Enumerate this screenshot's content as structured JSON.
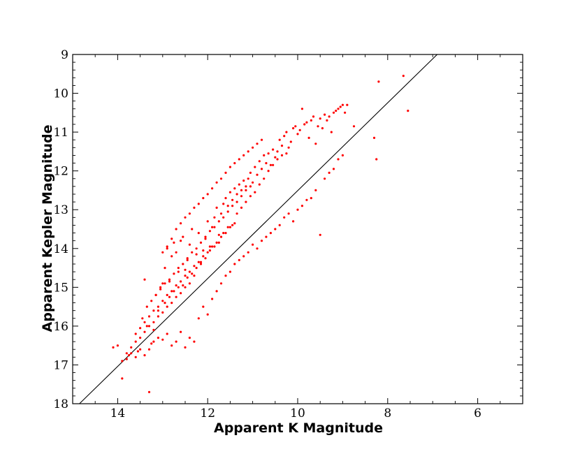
{
  "chart_data": {
    "type": "scatter",
    "title": "",
    "xlabel": "Apparent K Magnitude",
    "ylabel": "Apparent Kepler Magnitude",
    "xlim": [
      15,
      5
    ],
    "ylim": [
      18,
      9
    ],
    "x_inverted": true,
    "y_inverted": true,
    "x_ticks": [
      14,
      12,
      10,
      8,
      6
    ],
    "y_ticks": [
      9,
      10,
      11,
      12,
      13,
      14,
      15,
      16,
      17,
      18
    ],
    "grid": false,
    "legend": "none",
    "marker_color": "#ff0000",
    "line_color": "#000000",
    "reference_line": {
      "x": [
        14.85,
        6.9
      ],
      "y": [
        18.0,
        9.0
      ]
    },
    "series": [
      {
        "marker": "dot",
        "x": [
          14.1,
          14.0,
          13.9,
          13.8,
          13.75,
          13.7,
          13.6,
          13.55,
          13.5,
          13.45,
          13.4,
          13.35,
          13.3,
          13.25,
          13.2,
          13.15,
          13.1,
          13.05,
          13.0,
          12.95,
          12.9,
          12.85,
          12.8,
          12.75,
          12.7,
          12.65,
          12.6,
          12.55,
          12.5,
          12.45,
          12.4,
          12.35,
          12.3,
          12.25,
          12.2,
          12.15,
          12.1,
          12.05,
          12.0,
          11.95,
          11.9,
          11.85,
          11.8,
          11.75,
          11.7,
          11.65,
          11.6,
          11.55,
          11.5,
          11.45,
          11.4,
          11.35,
          11.3,
          11.25,
          11.2,
          11.15,
          11.1,
          11.05,
          11.0,
          10.95,
          10.9,
          10.85,
          10.8,
          10.75,
          10.7,
          10.65,
          10.6,
          10.55,
          10.5,
          10.45,
          10.4,
          10.35,
          10.3,
          10.25,
          10.2,
          10.15,
          10.1,
          10.05,
          10.0,
          9.95,
          9.9,
          9.85,
          9.8,
          9.75,
          9.7,
          9.65,
          9.6,
          9.55,
          9.5,
          9.45,
          9.4,
          9.35,
          9.3,
          9.25,
          9.2,
          9.15,
          9.1,
          9.05,
          9.0,
          8.95,
          8.9,
          8.75,
          8.3,
          8.25,
          8.2,
          7.65,
          7.55,
          13.4,
          13.3,
          13.2,
          13.1,
          13.0,
          12.9,
          12.8,
          12.7,
          12.6,
          12.5,
          12.4,
          12.3,
          12.2,
          12.1,
          12.0,
          11.9,
          11.8,
          11.7,
          11.6,
          11.5,
          11.4,
          11.3,
          11.2,
          11.1,
          11.0,
          10.9,
          10.8,
          10.7,
          10.6,
          10.5,
          10.4,
          10.3,
          10.2,
          10.1,
          10.0,
          9.9,
          9.8,
          9.7,
          9.6,
          9.5,
          9.4,
          9.3,
          9.2,
          9.1,
          9.0,
          12.95,
          12.85,
          12.75,
          12.65,
          12.55,
          12.45,
          12.35,
          12.25,
          12.15,
          12.05,
          11.95,
          11.85,
          11.75,
          11.65,
          11.55,
          11.45,
          11.35,
          11.25,
          11.15,
          11.05,
          10.95,
          10.85,
          10.75,
          10.65,
          10.55,
          10.45,
          10.35,
          10.25,
          13.0,
          12.9,
          12.8,
          12.7,
          12.6,
          12.5,
          12.4,
          12.3,
          12.2,
          12.1,
          12.0,
          11.9,
          11.8,
          11.7,
          11.6,
          11.5,
          11.4,
          11.3,
          11.2,
          11.1,
          11.0,
          10.9,
          10.8,
          13.35,
          13.25,
          13.15,
          13.05,
          12.95,
          12.85,
          12.75,
          12.65,
          12.55,
          12.45,
          12.35,
          12.25,
          12.15,
          12.05,
          11.95,
          11.85,
          11.75,
          11.65,
          11.55,
          11.45,
          11.35,
          11.25,
          11.15,
          11.05,
          13.6,
          13.5,
          13.4,
          13.3,
          13.2,
          13.1,
          13.0,
          12.9,
          12.8,
          12.7,
          12.6,
          12.5,
          12.4,
          12.3,
          12.2,
          12.1,
          12.0,
          11.9,
          11.8,
          11.7,
          11.6,
          11.5,
          11.4,
          13.9,
          13.8,
          13.7,
          13.6,
          13.5,
          13.4,
          13.3,
          13.2,
          13.1,
          13.0,
          12.9,
          12.8,
          12.7,
          12.6,
          12.5,
          12.4
        ],
        "y": [
          16.55,
          16.5,
          17.35,
          16.85,
          16.75,
          16.7,
          16.8,
          16.65,
          16.6,
          15.8,
          14.8,
          16.0,
          17.7,
          16.45,
          16.1,
          15.2,
          15.6,
          15.0,
          14.9,
          14.5,
          14.0,
          14.85,
          14.2,
          13.85,
          14.1,
          14.6,
          13.8,
          13.7,
          14.55,
          14.3,
          13.9,
          13.5,
          14.7,
          14.15,
          13.6,
          14.4,
          14.05,
          13.75,
          13.3,
          13.95,
          13.45,
          13.2,
          12.95,
          13.65,
          13.1,
          12.85,
          12.7,
          12.9,
          12.55,
          12.75,
          12.45,
          12.6,
          12.35,
          12.5,
          12.25,
          12.4,
          12.2,
          12.05,
          12.3,
          11.9,
          12.1,
          11.75,
          11.95,
          11.6,
          11.8,
          11.55,
          11.85,
          11.45,
          11.65,
          11.5,
          11.2,
          11.35,
          11.1,
          11.0,
          11.4,
          11.25,
          10.9,
          10.85,
          11.05,
          10.95,
          10.4,
          10.8,
          10.75,
          11.15,
          10.7,
          10.6,
          11.3,
          10.85,
          10.65,
          10.9,
          10.55,
          10.7,
          10.6,
          11.0,
          10.5,
          10.45,
          10.4,
          10.35,
          10.3,
          10.5,
          10.3,
          10.85,
          11.15,
          11.7,
          9.7,
          9.55,
          10.45,
          16.75,
          16.6,
          16.4,
          16.3,
          16.35,
          16.2,
          16.5,
          16.4,
          16.15,
          16.55,
          16.3,
          16.4,
          15.8,
          15.5,
          15.7,
          15.3,
          15.1,
          14.9,
          14.7,
          14.6,
          14.4,
          14.3,
          14.2,
          14.1,
          13.9,
          14.0,
          13.8,
          13.7,
          13.6,
          13.5,
          13.4,
          13.2,
          13.1,
          13.3,
          13.0,
          12.9,
          12.75,
          12.7,
          12.5,
          13.65,
          12.2,
          12.05,
          11.95,
          11.7,
          11.6,
          15.4,
          15.25,
          15.1,
          15.0,
          14.95,
          14.75,
          14.65,
          14.5,
          14.35,
          14.25,
          14.05,
          13.95,
          13.85,
          13.6,
          13.45,
          13.4,
          13.1,
          12.95,
          12.8,
          12.65,
          12.55,
          12.35,
          12.2,
          12.0,
          11.85,
          11.7,
          11.6,
          11.55,
          14.1,
          13.95,
          13.75,
          13.5,
          13.35,
          13.2,
          13.1,
          12.95,
          12.85,
          12.7,
          12.6,
          12.45,
          12.3,
          12.2,
          12.05,
          11.9,
          11.8,
          11.7,
          11.6,
          11.5,
          11.4,
          11.3,
          11.2,
          15.5,
          15.35,
          15.2,
          15.05,
          14.9,
          14.8,
          14.65,
          14.5,
          14.4,
          14.25,
          14.1,
          14.0,
          13.85,
          13.7,
          13.55,
          13.45,
          13.3,
          13.2,
          13.05,
          12.9,
          12.8,
          12.65,
          12.5,
          12.4,
          16.2,
          16.05,
          15.9,
          15.75,
          15.6,
          15.5,
          15.35,
          15.2,
          15.1,
          14.95,
          14.85,
          14.7,
          14.6,
          14.45,
          14.35,
          14.2,
          14.1,
          13.95,
          13.85,
          13.7,
          13.6,
          13.45,
          13.35,
          16.9,
          16.7,
          16.55,
          16.4,
          16.3,
          16.15,
          16.0,
          15.9,
          15.75,
          15.65,
          15.5,
          15.4,
          15.25,
          15.15,
          15.0,
          14.9
        ]
      }
    ]
  }
}
